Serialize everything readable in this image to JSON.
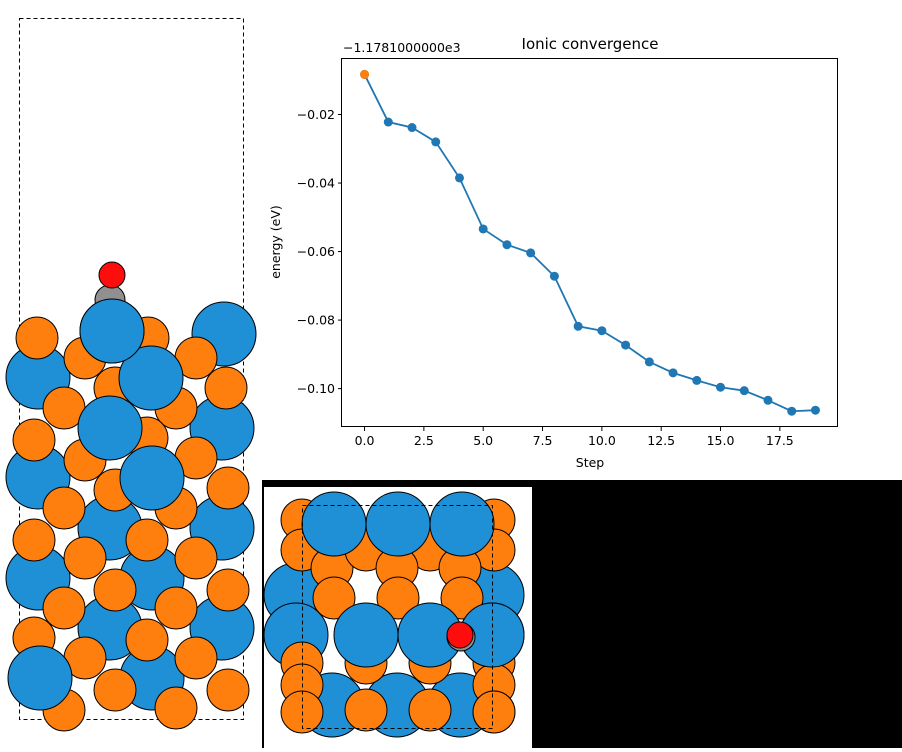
{
  "chart_data": {
    "type": "line",
    "title": "Ionic convergence",
    "xlabel": "Step",
    "ylabel": "energy (eV)",
    "offset_label": "−1.1781000000e3",
    "xlim": [
      -0.95,
      19.95
    ],
    "ylim": [
      -0.1112,
      -0.0038
    ],
    "xticks": [
      0.0,
      2.5,
      5.0,
      7.5,
      10.0,
      12.5,
      15.0,
      17.5
    ],
    "xtick_labels": [
      "0.0",
      "2.5",
      "5.0",
      "7.5",
      "10.0",
      "12.5",
      "15.0",
      "17.5"
    ],
    "yticks": [
      -0.02,
      -0.04,
      -0.06,
      -0.08,
      -0.1
    ],
    "ytick_labels": [
      "−0.02",
      "−0.04",
      "−0.06",
      "−0.08",
      "−0.10"
    ],
    "series": [
      {
        "color": "#1f77b4",
        "x": [
          0,
          1,
          2,
          3,
          4,
          5,
          6,
          7,
          8,
          9,
          10,
          11,
          12,
          13,
          14,
          15,
          16,
          17,
          18,
          19
        ],
        "y": [
          -0.0083,
          -0.0222,
          -0.0238,
          -0.028,
          -0.0385,
          -0.0534,
          -0.058,
          -0.0604,
          -0.0672,
          -0.0818,
          -0.0831,
          -0.0873,
          -0.0922,
          -0.0954,
          -0.0976,
          -0.0996,
          -0.1006,
          -0.1034,
          -0.1066,
          -0.1063
        ]
      }
    ],
    "start_marker": {
      "x": 0,
      "y": -0.0083,
      "color": "#ff7f0e"
    },
    "grid": false
  },
  "colors": {
    "metal_a": "#ff7f0e",
    "metal_b": "#1f8fd6",
    "oxygen": "#ff0d0d",
    "carbon": "#909090",
    "outline": "#000000"
  }
}
